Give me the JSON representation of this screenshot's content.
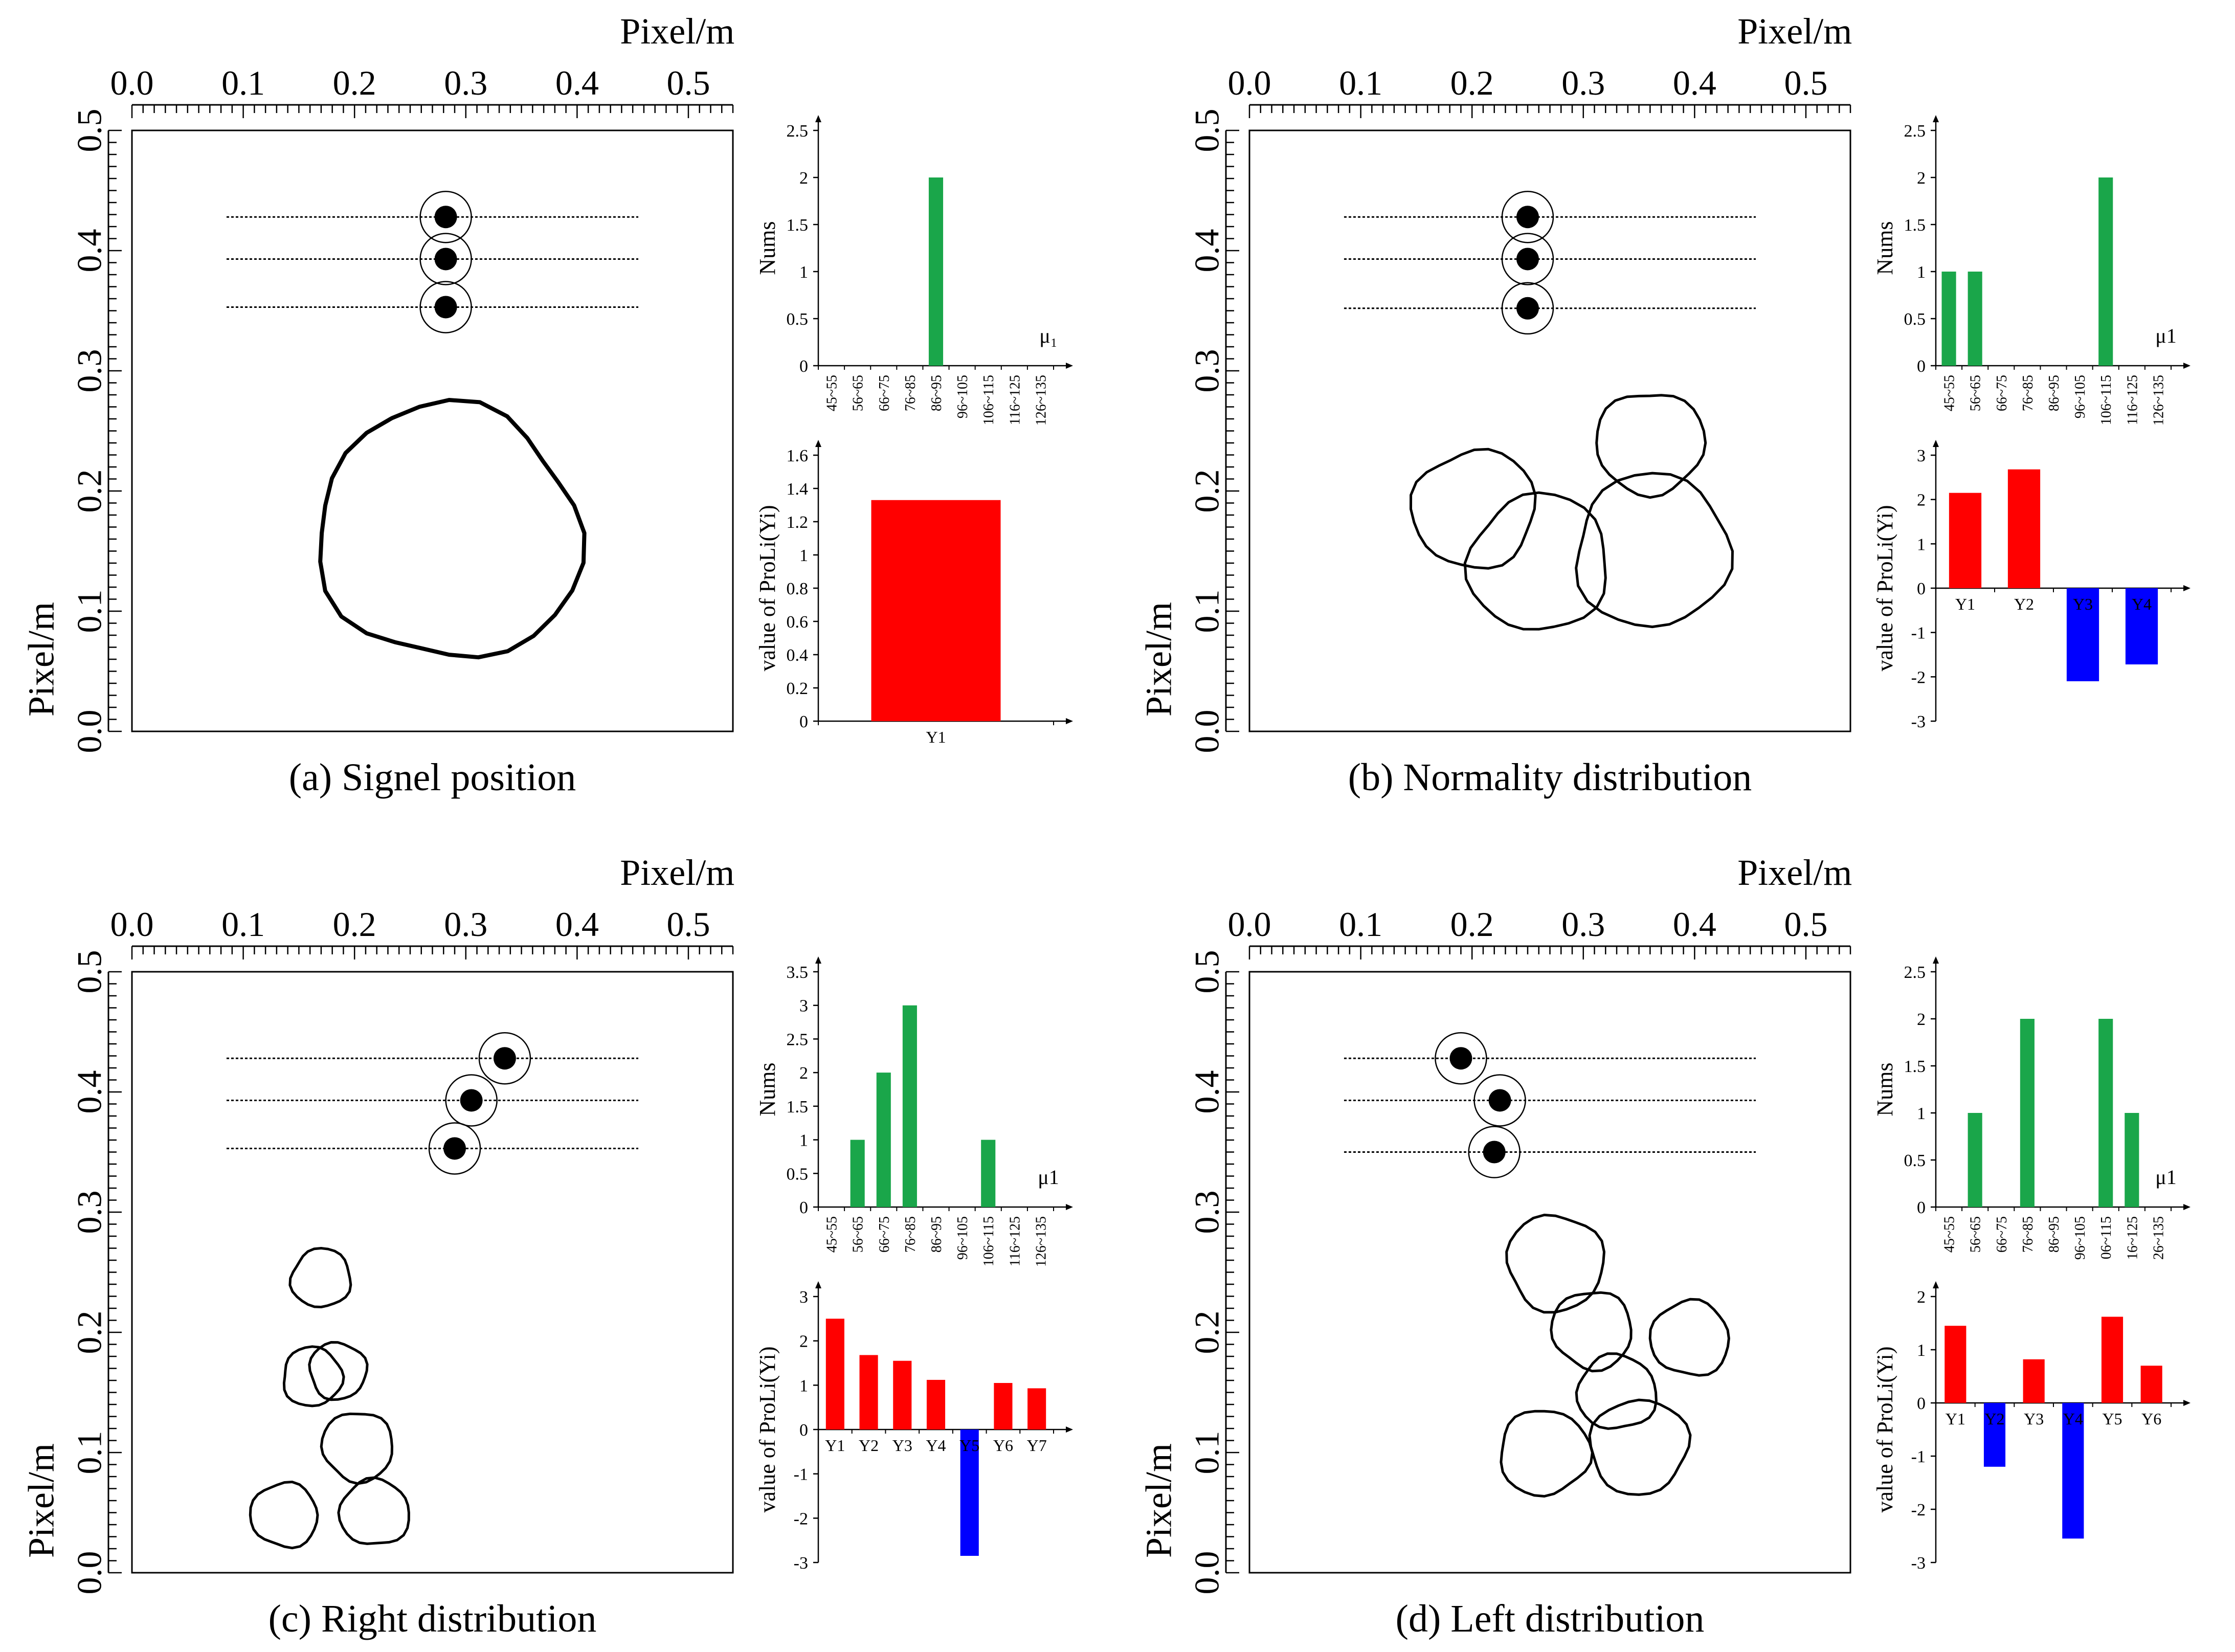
{
  "colors": {
    "green": "#1aa64a",
    "red": "#ff0000",
    "blue": "#0000ff",
    "black": "#000000"
  },
  "panels": [
    {
      "id": "a",
      "caption": "(a) Signel position",
      "map": {
        "top_label": "Pixel/m",
        "left_label": "Pixel/m",
        "x_ticks": [
          "0.0",
          "0.1",
          "0.2",
          "0.3",
          "0.4",
          "0.5"
        ],
        "y_ticks": [
          "0.0",
          "0.1",
          "0.2",
          "0.3",
          "0.4",
          "0.5"
        ],
        "xlim": [
          0,
          0.54
        ],
        "ylim": [
          0,
          0.5
        ],
        "scan_lines": [
          {
            "y": 0.428,
            "x0": 0.085,
            "x1": 0.455
          },
          {
            "y": 0.393,
            "x0": 0.085,
            "x1": 0.455
          },
          {
            "y": 0.353,
            "x0": 0.085,
            "x1": 0.455
          }
        ],
        "signals": [
          {
            "x": 0.282,
            "y": 0.428
          },
          {
            "x": 0.282,
            "y": 0.393
          },
          {
            "x": 0.282,
            "y": 0.353
          }
        ],
        "particles": [
          {
            "x": 0.285,
            "y": 0.165,
            "r": 0.118
          }
        ]
      },
      "hist": {
        "type": "bar",
        "ylabel": "Nums",
        "xlabel": "μ₁",
        "categories": [
          "45~55",
          "56~65",
          "66~75",
          "76~85",
          "86~95",
          "96~105",
          "106~115",
          "116~125",
          "126~135"
        ],
        "values": [
          0,
          0,
          0,
          0,
          2,
          0,
          0,
          0,
          0
        ],
        "ylim": [
          0,
          2.5
        ],
        "y_ticks": [
          "0",
          "0.5",
          "1",
          "1.5",
          "2",
          "2.5"
        ]
      },
      "prob": {
        "type": "bar",
        "ylabel": "value of ProLi(Yi)",
        "categories": [
          "Y1"
        ],
        "values": [
          1.33
        ],
        "ylim": [
          0,
          1.6
        ],
        "y_ticks": [
          "0",
          "0.2",
          "0.4",
          "0.6",
          "0.8",
          "1",
          "1.2",
          "1.4",
          "1.6"
        ]
      }
    },
    {
      "id": "b",
      "caption": "(b) Normality distribution",
      "map": {
        "top_label": "Pixel/m",
        "left_label": "Pixel/m",
        "x_ticks": [
          "0.0",
          "0.1",
          "0.2",
          "0.3",
          "0.4",
          "0.5"
        ],
        "y_ticks": [
          "0.0",
          "0.1",
          "0.2",
          "0.3",
          "0.4",
          "0.5"
        ],
        "xlim": [
          0,
          0.54
        ],
        "ylim": [
          0,
          0.5
        ],
        "scan_lines": [
          {
            "y": 0.428,
            "x0": 0.085,
            "x1": 0.455
          },
          {
            "y": 0.393,
            "x0": 0.085,
            "x1": 0.455
          },
          {
            "y": 0.352,
            "x0": 0.085,
            "x1": 0.455
          }
        ],
        "signals": [
          {
            "x": 0.25,
            "y": 0.428
          },
          {
            "x": 0.25,
            "y": 0.393
          },
          {
            "x": 0.25,
            "y": 0.352
          }
        ],
        "particles": [
          {
            "x": 0.36,
            "y": 0.24,
            "r": 0.048
          },
          {
            "x": 0.202,
            "y": 0.185,
            "r": 0.055
          },
          {
            "x": 0.26,
            "y": 0.14,
            "r": 0.063
          },
          {
            "x": 0.362,
            "y": 0.15,
            "r": 0.07
          }
        ]
      },
      "hist": {
        "type": "bar",
        "ylabel": "Nums",
        "xlabel": "μ1",
        "categories": [
          "45~55",
          "56~65",
          "66~75",
          "76~85",
          "86~95",
          "96~105",
          "106~115",
          "116~125",
          "126~135"
        ],
        "values": [
          1,
          1,
          0,
          0,
          0,
          0,
          2,
          0,
          0
        ],
        "ylim": [
          0,
          2.5
        ],
        "y_ticks": [
          "0",
          "0.5",
          "1",
          "1.5",
          "2",
          "2.5"
        ]
      },
      "prob": {
        "type": "bar",
        "ylabel": "value of ProLi(Yi)",
        "categories": [
          "Y1",
          "Y2",
          "Y3",
          "Y4"
        ],
        "values": [
          2.15,
          2.68,
          -2.1,
          -1.72
        ],
        "ylim": [
          -3,
          3
        ],
        "y_ticks": [
          "-3",
          "-2",
          "-1",
          "0",
          "1",
          "2",
          "3"
        ]
      }
    },
    {
      "id": "c",
      "caption": "(c) Right distribution",
      "map": {
        "top_label": "Pixel/m",
        "left_label": "Pixel/m",
        "x_ticks": [
          "0.0",
          "0.1",
          "0.2",
          "0.3",
          "0.4",
          "0.5"
        ],
        "y_ticks": [
          "0.0",
          "0.1",
          "0.2",
          "0.3",
          "0.4",
          "0.5"
        ],
        "xlim": [
          0,
          0.54
        ],
        "ylim": [
          0,
          0.5
        ],
        "scan_lines": [
          {
            "y": 0.428,
            "x0": 0.085,
            "x1": 0.455
          },
          {
            "y": 0.393,
            "x0": 0.085,
            "x1": 0.455
          },
          {
            "y": 0.353,
            "x0": 0.085,
            "x1": 0.455
          }
        ],
        "signals": [
          {
            "x": 0.335,
            "y": 0.428
          },
          {
            "x": 0.305,
            "y": 0.393
          },
          {
            "x": 0.29,
            "y": 0.353
          }
        ],
        "particles": [
          {
            "x": 0.17,
            "y": 0.245,
            "r": 0.027
          },
          {
            "x": 0.162,
            "y": 0.163,
            "r": 0.027
          },
          {
            "x": 0.185,
            "y": 0.168,
            "r": 0.026
          },
          {
            "x": 0.203,
            "y": 0.105,
            "r": 0.032
          },
          {
            "x": 0.137,
            "y": 0.048,
            "r": 0.03
          },
          {
            "x": 0.218,
            "y": 0.05,
            "r": 0.031
          }
        ]
      },
      "hist": {
        "type": "bar",
        "ylabel": "Nums",
        "xlabel": "μ1",
        "categories": [
          "45~55",
          "56~65",
          "66~75",
          "76~85",
          "86~95",
          "96~105",
          "106~115",
          "116~125",
          "126~135"
        ],
        "values": [
          0,
          1,
          2,
          3,
          0,
          0,
          1,
          0,
          0
        ],
        "ylim": [
          0,
          3.5
        ],
        "y_ticks": [
          "0",
          "0.5",
          "1",
          "1.5",
          "2",
          "2.5",
          "3",
          "3.5"
        ]
      },
      "prob": {
        "type": "bar",
        "ylabel": "value of ProLi(Yi)",
        "categories": [
          "Y1",
          "Y2",
          "Y3",
          "Y4",
          "Y5",
          "Y6",
          "Y7"
        ],
        "values": [
          2.5,
          1.68,
          1.55,
          1.12,
          -2.85,
          1.05,
          0.93
        ],
        "ylim": [
          -3,
          3
        ],
        "y_ticks": [
          "-3",
          "-2",
          "-1",
          "0",
          "1",
          "2",
          "3"
        ]
      }
    },
    {
      "id": "d",
      "caption": "(d) Left distribution",
      "map": {
        "top_label": "Pixel/m",
        "left_label": "Pixel/m",
        "x_ticks": [
          "0.0",
          "0.1",
          "0.2",
          "0.3",
          "0.4",
          "0.5"
        ],
        "y_ticks": [
          "0.0",
          "0.1",
          "0.2",
          "0.3",
          "0.4",
          "0.5"
        ],
        "xlim": [
          0,
          0.54
        ],
        "ylim": [
          0,
          0.5
        ],
        "scan_lines": [
          {
            "y": 0.428,
            "x0": 0.085,
            "x1": 0.455
          },
          {
            "y": 0.393,
            "x0": 0.085,
            "x1": 0.455
          },
          {
            "y": 0.35,
            "x0": 0.085,
            "x1": 0.455
          }
        ],
        "signals": [
          {
            "x": 0.19,
            "y": 0.428
          },
          {
            "x": 0.225,
            "y": 0.393
          },
          {
            "x": 0.22,
            "y": 0.35
          }
        ],
        "particles": [
          {
            "x": 0.275,
            "y": 0.258,
            "r": 0.044
          },
          {
            "x": 0.308,
            "y": 0.202,
            "r": 0.036
          },
          {
            "x": 0.396,
            "y": 0.195,
            "r": 0.035
          },
          {
            "x": 0.33,
            "y": 0.15,
            "r": 0.035
          },
          {
            "x": 0.265,
            "y": 0.1,
            "r": 0.04
          },
          {
            "x": 0.35,
            "y": 0.105,
            "r": 0.044
          }
        ]
      },
      "hist": {
        "type": "bar",
        "ylabel": "Nums",
        "xlabel": "μ1",
        "categories": [
          "45~55",
          "56~65",
          "66~75",
          "76~85",
          "86~95",
          "96~105",
          "06~115",
          "16~125",
          "26~135"
        ],
        "values": [
          0,
          1,
          0,
          2,
          0,
          0,
          2,
          1,
          0
        ],
        "ylim": [
          0,
          2.5
        ],
        "y_ticks": [
          "0",
          "0.5",
          "1",
          "1.5",
          "2",
          "2.5"
        ]
      },
      "prob": {
        "type": "bar",
        "ylabel": "value of ProLi(Yi)",
        "categories": [
          "Y1",
          "Y2",
          "Y3",
          "Y4",
          "Y5",
          "Y6"
        ],
        "values": [
          1.45,
          -1.2,
          0.82,
          -2.55,
          1.62,
          0.7
        ],
        "ylim": [
          -3,
          2
        ],
        "y_ticks": [
          "-3",
          "-2",
          "-1",
          "0",
          "1",
          "2"
        ]
      }
    }
  ]
}
